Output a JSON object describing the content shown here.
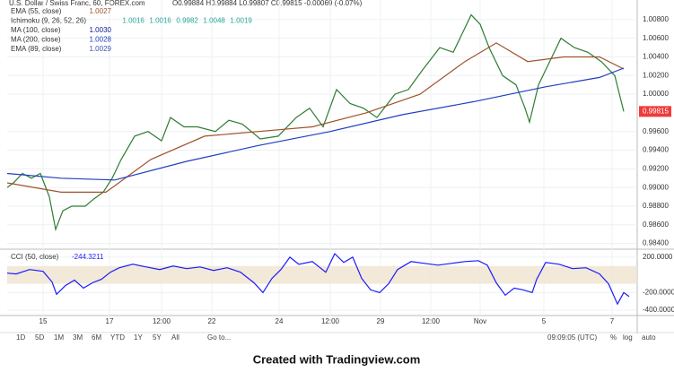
{
  "chart_data": [
    {
      "type": "line",
      "title": "U.S. Dollar / Swiss Franc, 60, FOREX.com",
      "ohlc": "O0.99884 H0.99884 L0.99807 C0.99815 -0.00069 (-0.07%)",
      "indicators": [
        {
          "name": "Ichimoku (9, 26, 52, 26)",
          "readings": [
            "1.0016",
            "1.0016",
            "0.9982",
            "1.0048",
            "1.0019"
          ],
          "color": "#26a69a"
        },
        {
          "name": "MA (100, close)",
          "readings": [
            "1.0030"
          ],
          "color": "#0d1b8c"
        },
        {
          "name": "EMA (89, close)",
          "readings": [
            "1.0029"
          ],
          "color": "#3f51b5"
        }
      ],
      "series": [
        {
          "color": "#2e7d32",
          "x": [
            0,
            7,
            17,
            27,
            37,
            47,
            54,
            62,
            72,
            87,
            97,
            107,
            117,
            127,
            142,
            157,
            172,
            182,
            197,
            212,
            232,
            247,
            262,
            282,
            302,
            322,
            337,
            352,
            367,
            382,
            397,
            412,
            432,
            447,
            462,
            482,
            497,
            507,
            517,
            527,
            537,
            552,
            567,
            577,
            582,
            592,
            602,
            617,
            632,
            647,
            662,
            677,
            687
          ],
          "values": [
            0.99,
            0.9905,
            0.9915,
            0.991,
            0.9915,
            0.989,
            0.9855,
            0.9875,
            0.988,
            0.988,
            0.9888,
            0.9895,
            0.991,
            0.993,
            0.9955,
            0.996,
            0.995,
            0.9975,
            0.9965,
            0.9965,
            0.996,
            0.9972,
            0.9968,
            0.9952,
            0.9955,
            0.9975,
            0.9985,
            0.9965,
            1.0005,
            0.999,
            0.9985,
            0.9975,
            1.0,
            1.0005,
            1.0025,
            1.005,
            1.0045,
            1.0065,
            1.0085,
            1.0075,
            1.005,
            1.002,
            1.001,
            0.9985,
            0.997,
            1.001,
            1.003,
            1.006,
            1.005,
            1.0045,
            1.0035,
            1.002,
            0.99815
          ]
        },
        {
          "name": "EMA (55, close)",
          "readings": [
            "1.0027"
          ],
          "color": "#a0522d",
          "x": [
            0,
            60,
            110,
            160,
            220,
            280,
            340,
            400,
            460,
            510,
            545,
            580,
            620,
            660,
            687
          ],
          "values": [
            0.9905,
            0.9895,
            0.9895,
            0.993,
            0.9955,
            0.996,
            0.9965,
            0.998,
            1.0,
            1.0035,
            1.0055,
            1.0035,
            1.004,
            1.004,
            1.0027
          ]
        },
        {
          "name": "MA (200, close)",
          "readings": [
            "1.0028"
          ],
          "color": "#1f3fbf",
          "x": [
            0,
            60,
            120,
            200,
            280,
            360,
            440,
            520,
            600,
            660,
            687
          ],
          "values": [
            0.9915,
            0.991,
            0.9908,
            0.9928,
            0.9945,
            0.996,
            0.9978,
            0.9992,
            1.0008,
            1.0018,
            1.0028
          ]
        }
      ],
      "last_price": 0.99815,
      "xlim": [
        0,
        702
      ],
      "ylim": [
        0.983,
        1.0101
      ],
      "xticks": [
        {
          "value": 40,
          "label": "15"
        },
        {
          "value": 114,
          "label": "17"
        },
        {
          "value": 172,
          "label": "12:00"
        },
        {
          "value": 228,
          "label": "22"
        },
        {
          "value": 303,
          "label": "24"
        },
        {
          "value": 360,
          "label": "12:00"
        },
        {
          "value": 416,
          "label": "29"
        },
        {
          "value": 472,
          "label": "12:00"
        },
        {
          "value": 527,
          "label": "Nov"
        },
        {
          "value": 598,
          "label": "5"
        },
        {
          "value": 674,
          "label": "7"
        }
      ],
      "yticks": [
        {
          "value": 0.984,
          "label": "0.98400"
        },
        {
          "value": 0.986,
          "label": "0.98600"
        },
        {
          "value": 0.988,
          "label": "0.98800"
        },
        {
          "value": 0.99,
          "label": "0.99000"
        },
        {
          "value": 0.992,
          "label": "0.99200"
        },
        {
          "value": 0.994,
          "label": "0.99400"
        },
        {
          "value": 0.996,
          "label": "0.99600"
        },
        {
          "value": 1.0,
          "label": "1.00000"
        },
        {
          "value": 1.002,
          "label": "1.00200"
        },
        {
          "value": 1.004,
          "label": "1.00400"
        },
        {
          "value": 1.006,
          "label": "1.00600"
        },
        {
          "value": 1.008,
          "label": "1.00800"
        }
      ],
      "grid": true
    },
    {
      "type": "line",
      "legend": {
        "name": "CCI (50, close)",
        "reading": "-244.3211"
      },
      "series": [
        {
          "color": "#1a1aff",
          "x": [
            0,
            10,
            25,
            40,
            50,
            55,
            65,
            75,
            85,
            95,
            105,
            115,
            125,
            140,
            155,
            170,
            185,
            200,
            215,
            230,
            245,
            260,
            275,
            285,
            295,
            305,
            315,
            325,
            340,
            355,
            365,
            375,
            385,
            395,
            405,
            415,
            425,
            435,
            450,
            465,
            480,
            495,
            510,
            525,
            535,
            545,
            555,
            565,
            575,
            585,
            590,
            600,
            615,
            630,
            645,
            660,
            670,
            680,
            687,
            693
          ],
          "values": [
            20,
            10,
            60,
            40,
            -80,
            -220,
            -120,
            -60,
            -150,
            -90,
            -50,
            30,
            80,
            120,
            90,
            60,
            100,
            70,
            90,
            50,
            80,
            30,
            -90,
            -200,
            -40,
            60,
            200,
            120,
            150,
            30,
            240,
            140,
            200,
            -40,
            -170,
            -200,
            -100,
            60,
            150,
            130,
            110,
            130,
            150,
            160,
            110,
            -90,
            -230,
            -150,
            -170,
            -200,
            -50,
            140,
            120,
            70,
            80,
            10,
            -100,
            -330,
            -200,
            -244
          ]
        }
      ],
      "band": [
        -100,
        100
      ],
      "xlim": [
        0,
        702
      ],
      "ylim": [
        -460,
        270
      ],
      "yticks": [
        {
          "value": 200,
          "label": "200.0000"
        },
        {
          "value": -200,
          "label": "-200.0000"
        },
        {
          "value": -400,
          "label": "-400.0000"
        }
      ],
      "grid": true
    }
  ],
  "toolbar": {
    "ranges": [
      "1D",
      "5D",
      "1M",
      "3M",
      "6M",
      "YTD",
      "1Y",
      "5Y",
      "All"
    ],
    "goto": "Go to...",
    "clock": "09:09:05 (UTC)",
    "options": [
      "%",
      "log",
      "auto"
    ]
  },
  "footer": "Created with Tradingview.com"
}
